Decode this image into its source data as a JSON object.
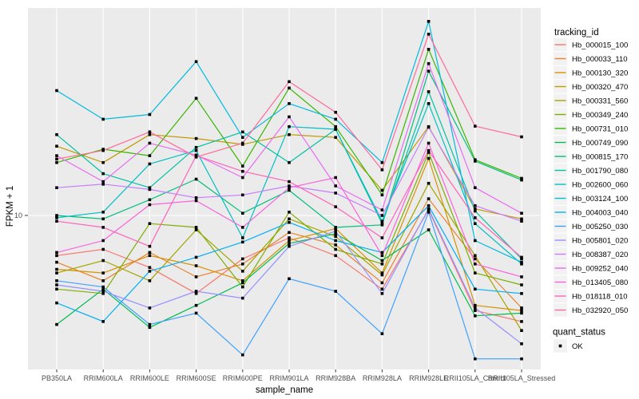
{
  "chart_data": {
    "type": "line",
    "title": "",
    "xlabel": "sample_name",
    "ylabel": "FPKM + 1",
    "y_scale": "log10",
    "y_ticks": [
      {
        "value": 10,
        "label": "10"
      }
    ],
    "grid": true,
    "legend_position": "right",
    "panel_bg": "#EBEBEB",
    "grid_color": "#FFFFFF",
    "tick_label_color": "#4D4D4D",
    "axis_title_color": "#000000",
    "legend_key_bg": "#F2F2F2",
    "point_marker": {
      "shape": "square",
      "color": "#000000",
      "size": 3.6
    },
    "categories": [
      "PB350LA",
      "RRIM600LA",
      "RRIM600LE",
      "RRIM600SE",
      "RRIM600PE",
      "RRIM901LA",
      "RRIM928BA",
      "RRIM928LA",
      "RRIM928LE",
      "RRII105LA_Control",
      "RRII105LA_Stressed"
    ],
    "series": [
      {
        "name": "Hb_000015_100",
        "color": "#F8766D",
        "values": [
          7.0,
          7.4,
          6.3,
          5.0,
          6.8,
          8.2,
          7.0,
          5.2,
          10.5,
          4.3,
          3.9
        ]
      },
      {
        "name": "Hb_000033_110",
        "color": "#EA8331",
        "values": [
          6.6,
          5.6,
          7.2,
          5.8,
          6.5,
          8.6,
          7.7,
          5.5,
          11.6,
          6.8,
          4.4
        ]
      },
      {
        "name": "Hb_000130_320",
        "color": "#D89000",
        "values": [
          6.2,
          6.0,
          7.0,
          6.4,
          5.6,
          8.0,
          8.9,
          6.0,
          16.6,
          4.5,
          4.3
        ]
      },
      {
        "name": "Hb_000320_470",
        "color": "#C09B00",
        "values": [
          18.5,
          16.0,
          20.5,
          19.8,
          18.8,
          20.5,
          20.0,
          12.5,
          22.0,
          10.6,
          9.7
        ]
      },
      {
        "name": "Hb_000331_560",
        "color": "#A3A500",
        "values": [
          6.0,
          6.7,
          5.6,
          8.8,
          6.1,
          9.7,
          8.3,
          5.9,
          13.3,
          7.0,
          3.6
        ]
      },
      {
        "name": "Hb_000349_240",
        "color": "#7CAE00",
        "values": [
          5.2,
          5.0,
          9.3,
          9.0,
          5.3,
          10.3,
          7.4,
          6.5,
          17.5,
          6.0,
          5.4
        ]
      },
      {
        "name": "Hb_000731_010",
        "color": "#39B600",
        "values": [
          16.0,
          18.0,
          17.0,
          28.3,
          15.5,
          31.0,
          22.0,
          12.0,
          43.7,
          16.4,
          13.9
        ]
      },
      {
        "name": "Hb_000749_090",
        "color": "#00BB4E",
        "values": [
          3.8,
          5.2,
          3.7,
          4.5,
          5.5,
          7.8,
          8.5,
          6.7,
          8.8,
          4.1,
          4.2
        ]
      },
      {
        "name": "Hb_000815_170",
        "color": "#00BF7D",
        "values": [
          10.0,
          9.7,
          11.5,
          13.8,
          10.2,
          12.5,
          9.0,
          9.2,
          36.0,
          16.2,
          13.7
        ]
      },
      {
        "name": "Hb_001790_080",
        "color": "#00C1A3",
        "values": [
          20.5,
          14.5,
          12.8,
          18.3,
          21.0,
          16.0,
          21.5,
          9.3,
          30.0,
          10.4,
          6.8
        ]
      },
      {
        "name": "Hb_002600_060",
        "color": "#00BFC4",
        "values": [
          9.8,
          10.3,
          15.8,
          17.8,
          8.2,
          22.0,
          21.5,
          9.5,
          27.0,
          9.3,
          6.5
        ]
      },
      {
        "name": "Hb_003124_100",
        "color": "#00BAE0",
        "values": [
          30.3,
          23.5,
          24.5,
          39.2,
          20.0,
          27.0,
          23.5,
          16.0,
          56.0,
          8.0,
          6.6
        ]
      },
      {
        "name": "Hb_004003_040",
        "color": "#00B0F6",
        "values": [
          4.6,
          3.9,
          6.1,
          6.9,
          7.9,
          9.4,
          8.0,
          7.2,
          10.9,
          5.2,
          5.0
        ]
      },
      {
        "name": "Hb_005250_030",
        "color": "#3FA1FF",
        "values": [
          5.6,
          5.3,
          3.8,
          4.2,
          2.9,
          5.7,
          5.1,
          3.5,
          10.3,
          2.8,
          2.8
        ]
      },
      {
        "name": "Hb_005801_020",
        "color": "#9590FF",
        "values": [
          5.4,
          5.1,
          4.4,
          5.1,
          4.8,
          7.6,
          8.7,
          5.0,
          10.6,
          4.4,
          3.2
        ]
      },
      {
        "name": "Hb_008387_020",
        "color": "#C77CFF",
        "values": [
          12.8,
          13.2,
          12.6,
          11.7,
          12.0,
          13.0,
          12.2,
          10.0,
          21.9,
          10.9,
          9.5
        ]
      },
      {
        "name": "Hb_009252_040",
        "color": "#E76BF3",
        "values": [
          17.0,
          13.5,
          19.0,
          17.1,
          14.0,
          24.0,
          13.0,
          10.5,
          38.5,
          12.8,
          10.2
        ]
      },
      {
        "name": "Hb_013405_080",
        "color": "#FA62DB",
        "values": [
          7.2,
          8.0,
          11.0,
          11.4,
          9.0,
          12.8,
          14.0,
          7.0,
          19.0,
          6.5,
          5.8
        ]
      },
      {
        "name": "Hb_018118_010",
        "color": "#FF62BC",
        "values": [
          9.5,
          9.0,
          7.6,
          17.0,
          14.8,
          13.5,
          10.8,
          8.2,
          17.8,
          9.8,
          6.9
        ]
      },
      {
        "name": "Hb_032920_050",
        "color": "#FF6A98",
        "values": [
          16.5,
          17.8,
          21.0,
          16.8,
          19.0,
          32.8,
          25.0,
          15.0,
          50.0,
          22.1,
          20.1
        ]
      }
    ],
    "legend": {
      "tracking_title": "tracking_id",
      "quant_title": "quant_status",
      "quant_label": "OK"
    }
  }
}
